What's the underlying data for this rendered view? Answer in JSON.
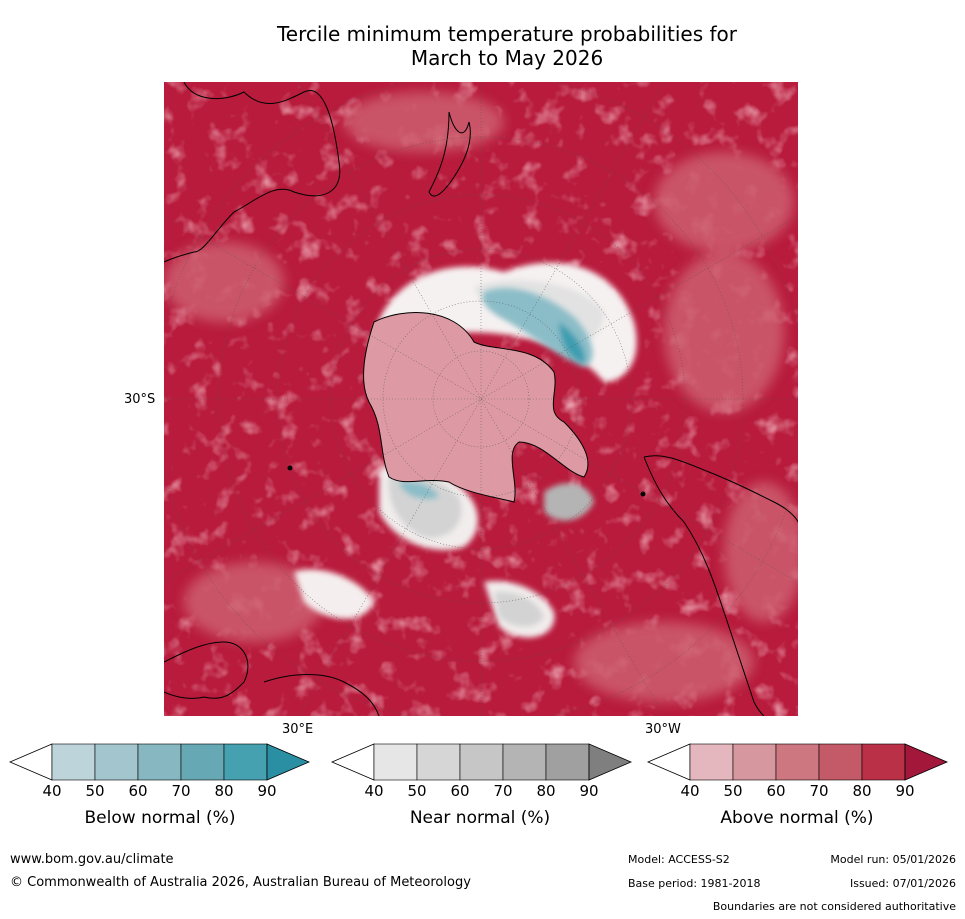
{
  "title": {
    "line1": "Tercile minimum temperature probabilities for",
    "line2": "March to May 2026"
  },
  "axis_labels": {
    "lat": "30°S",
    "lon_east": "30°E",
    "lon_west": "30°W"
  },
  "colorbars": [
    {
      "label": "Below normal (%)",
      "ticks": [
        "40",
        "50",
        "60",
        "70",
        "80",
        "90"
      ],
      "colors": [
        "#ffffff",
        "#bdd4da",
        "#a3c5cd",
        "#87b7c1",
        "#67a8b5",
        "#45a0b0",
        "#2a8fa3"
      ]
    },
    {
      "label": "Near normal (%)",
      "ticks": [
        "40",
        "50",
        "60",
        "70",
        "80",
        "90"
      ],
      "colors": [
        "#ffffff",
        "#e6e6e6",
        "#d6d6d6",
        "#c6c6c6",
        "#b4b4b4",
        "#a0a0a0",
        "#7f7f7f"
      ]
    },
    {
      "label": "Above normal (%)",
      "ticks": [
        "40",
        "50",
        "60",
        "70",
        "80",
        "90"
      ],
      "colors": [
        "#ffffff",
        "#e3b7bd",
        "#d6979f",
        "#cd7781",
        "#c45a68",
        "#b93047",
        "#a3183a"
      ]
    }
  ],
  "footer": {
    "url": "www.bom.gov.au/climate",
    "copyright": "© Commonwealth of Australia 2026, Australian Bureau of Meteorology",
    "model": "Model: ACCESS-S2",
    "model_run": "Model run: 05/01/2026",
    "base_period": "Base period: 1981-2018",
    "issued": "Issued: 07/01/2026",
    "disclaimer": "Boundaries are not considered authoritative"
  },
  "map": {
    "projection": "South polar stereographic",
    "colors": {
      "above_high": "#b81b3c",
      "above_mid": "#cd5f6f",
      "above_low": "#dd9aa4",
      "near_normal": "#d3d3d3",
      "below_mid": "#8bbdc8",
      "below_high": "#3d9db0",
      "land_outline": "#000000",
      "grid": "#555555"
    }
  }
}
